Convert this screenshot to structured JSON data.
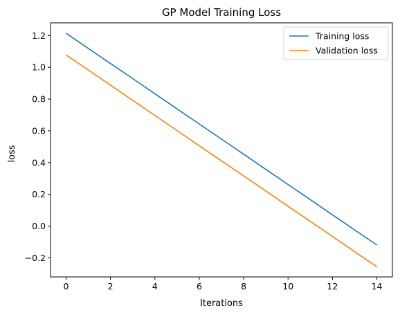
{
  "chart_data": {
    "type": "line",
    "title": "GP Model Training Loss",
    "xlabel": "Iterations",
    "ylabel": "loss",
    "xlim": [
      -0.7,
      14.7
    ],
    "ylim": [
      -0.32,
      1.28
    ],
    "xticks": [
      0,
      2,
      4,
      6,
      8,
      10,
      12,
      14
    ],
    "yticks": [
      -0.2,
      0.0,
      0.2,
      0.4,
      0.6,
      0.8,
      1.0,
      1.2
    ],
    "ytick_labels": [
      "−0.2",
      "0.0",
      "0.2",
      "0.4",
      "0.6",
      "0.8",
      "1.0",
      "1.2"
    ],
    "grid": false,
    "legend_position": "top-right",
    "series": [
      {
        "name": "Training loss",
        "color": "#1f77b4",
        "x": [
          0,
          1,
          2,
          3,
          4,
          5,
          6,
          7,
          8,
          9,
          10,
          11,
          12,
          13,
          14
        ],
        "y": [
          1.215,
          1.119,
          1.024,
          0.929,
          0.834,
          0.738,
          0.643,
          0.548,
          0.453,
          0.357,
          0.262,
          0.167,
          0.071,
          -0.024,
          -0.119
        ]
      },
      {
        "name": "Validation loss",
        "color": "#ff7f0e",
        "x": [
          0,
          1,
          2,
          3,
          4,
          5,
          6,
          7,
          8,
          9,
          10,
          11,
          12,
          13,
          14
        ],
        "y": [
          1.078,
          0.983,
          0.888,
          0.792,
          0.697,
          0.602,
          0.506,
          0.411,
          0.316,
          0.221,
          0.125,
          0.03,
          -0.065,
          -0.161,
          -0.256
        ]
      }
    ]
  }
}
